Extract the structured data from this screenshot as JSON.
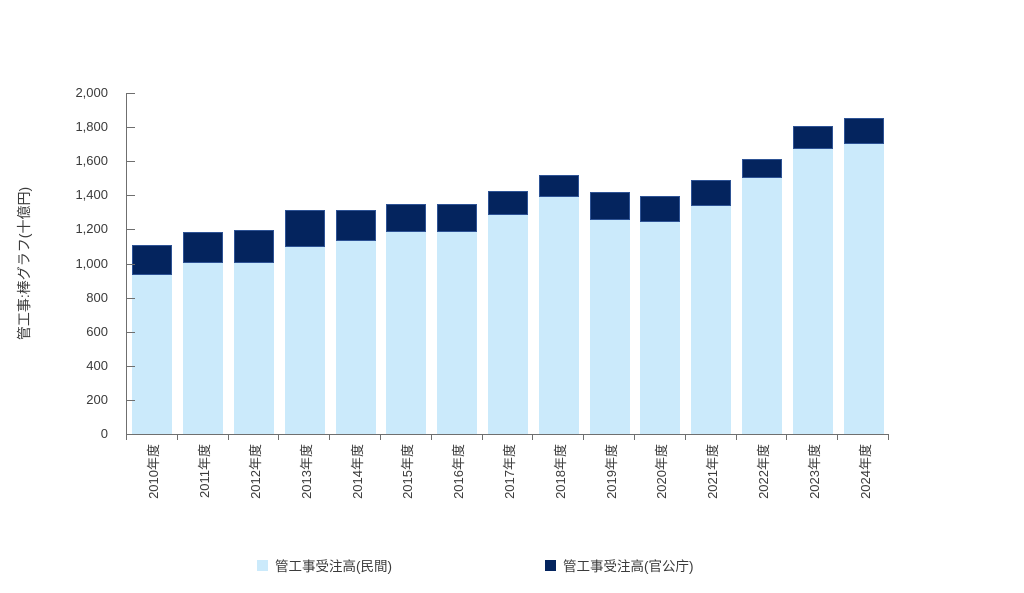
{
  "chart_data": {
    "type": "bar",
    "stacked": true,
    "title": "",
    "xlabel": "",
    "ylabel": "管工事:棒グラフ(十億円)",
    "categories": [
      "2010年度",
      "2011年度",
      "2012年度",
      "2013年度",
      "2014年度",
      "2015年度",
      "2016年度",
      "2017年度",
      "2018年度",
      "2019年度",
      "2020年度",
      "2021年度",
      "2022年度",
      "2023年度",
      "2024年度"
    ],
    "series": [
      {
        "name": "管工事受注高(民間)",
        "color": "#cbeafb",
        "values": [
          935,
          1000,
          1005,
          1095,
          1130,
          1185,
          1185,
          1285,
          1390,
          1255,
          1245,
          1340,
          1500,
          1670,
          1700
        ]
      },
      {
        "name": "管工事受注高(官公庁)",
        "color": "#04245e",
        "border_color": "#2e5395",
        "values": [
          175,
          180,
          195,
          215,
          180,
          165,
          165,
          140,
          130,
          165,
          150,
          155,
          110,
          135,
          155
        ]
      }
    ],
    "totals": [
      1110,
      1180,
      1200,
      1310,
      1310,
      1350,
      1350,
      1425,
      1520,
      1420,
      1395,
      1495,
      1610,
      1805,
      1855
    ],
    "ylim": [
      0,
      2000
    ],
    "ytick_step": 200,
    "ytick_labels": [
      "0",
      "200",
      "400",
      "600",
      "800",
      "1,000",
      "1,200",
      "1,400",
      "1,600",
      "1,800",
      "2,000"
    ],
    "grid": false,
    "legend_position": "bottom",
    "axis_color": "#6f6f6f",
    "text_color": "#3b3b3b",
    "background": "#ffffff"
  }
}
